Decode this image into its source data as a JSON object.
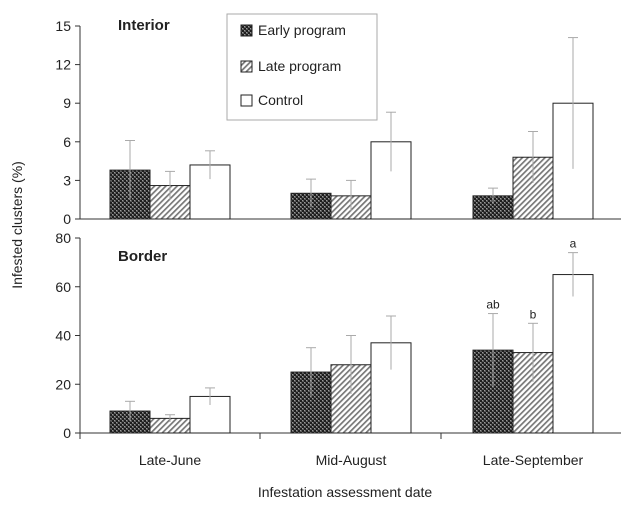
{
  "chart_data": {
    "type": "bar",
    "xlabel": "Infestation assessment date",
    "ylabel": "Infested clusters (%)",
    "categories": [
      "Late-June",
      "Mid-August",
      "Late-September"
    ],
    "legend": {
      "placement": "top-center",
      "entries": [
        {
          "name": "Early program",
          "pattern": "crosshatch"
        },
        {
          "name": "Late program",
          "pattern": "diagonal"
        },
        {
          "name": "Control",
          "pattern": "open"
        }
      ]
    },
    "panels": [
      {
        "label": "Interior",
        "ylim": [
          0,
          15
        ],
        "yticks": [
          0,
          3,
          6,
          9,
          12,
          15
        ],
        "series": [
          {
            "name": "Early program",
            "values": [
              3.8,
              2.0,
              1.8
            ],
            "errors": [
              2.3,
              1.1,
              0.6
            ],
            "sig": [
              "",
              "",
              ""
            ]
          },
          {
            "name": "Late program",
            "values": [
              2.6,
              1.8,
              4.8
            ],
            "errors": [
              1.1,
              1.2,
              2.0
            ],
            "sig": [
              "",
              "",
              ""
            ]
          },
          {
            "name": "Control",
            "values": [
              4.2,
              6.0,
              9.0
            ],
            "errors": [
              1.1,
              2.3,
              5.1
            ],
            "sig": [
              "",
              "",
              ""
            ]
          }
        ]
      },
      {
        "label": "Border",
        "ylim": [
          0,
          80
        ],
        "yticks": [
          0,
          20,
          40,
          60,
          80
        ],
        "series": [
          {
            "name": "Early program",
            "values": [
              9,
              25,
              34
            ],
            "errors": [
              4,
              10,
              15
            ],
            "sig": [
              "",
              "",
              "ab"
            ]
          },
          {
            "name": "Late program",
            "values": [
              6,
              28,
              33
            ],
            "errors": [
              1.5,
              12,
              12
            ],
            "sig": [
              "",
              "",
              "b"
            ]
          },
          {
            "name": "Control",
            "values": [
              15,
              37,
              65
            ],
            "errors": [
              3.5,
              11,
              9
            ],
            "sig": [
              "",
              "",
              "a"
            ]
          }
        ]
      }
    ]
  }
}
